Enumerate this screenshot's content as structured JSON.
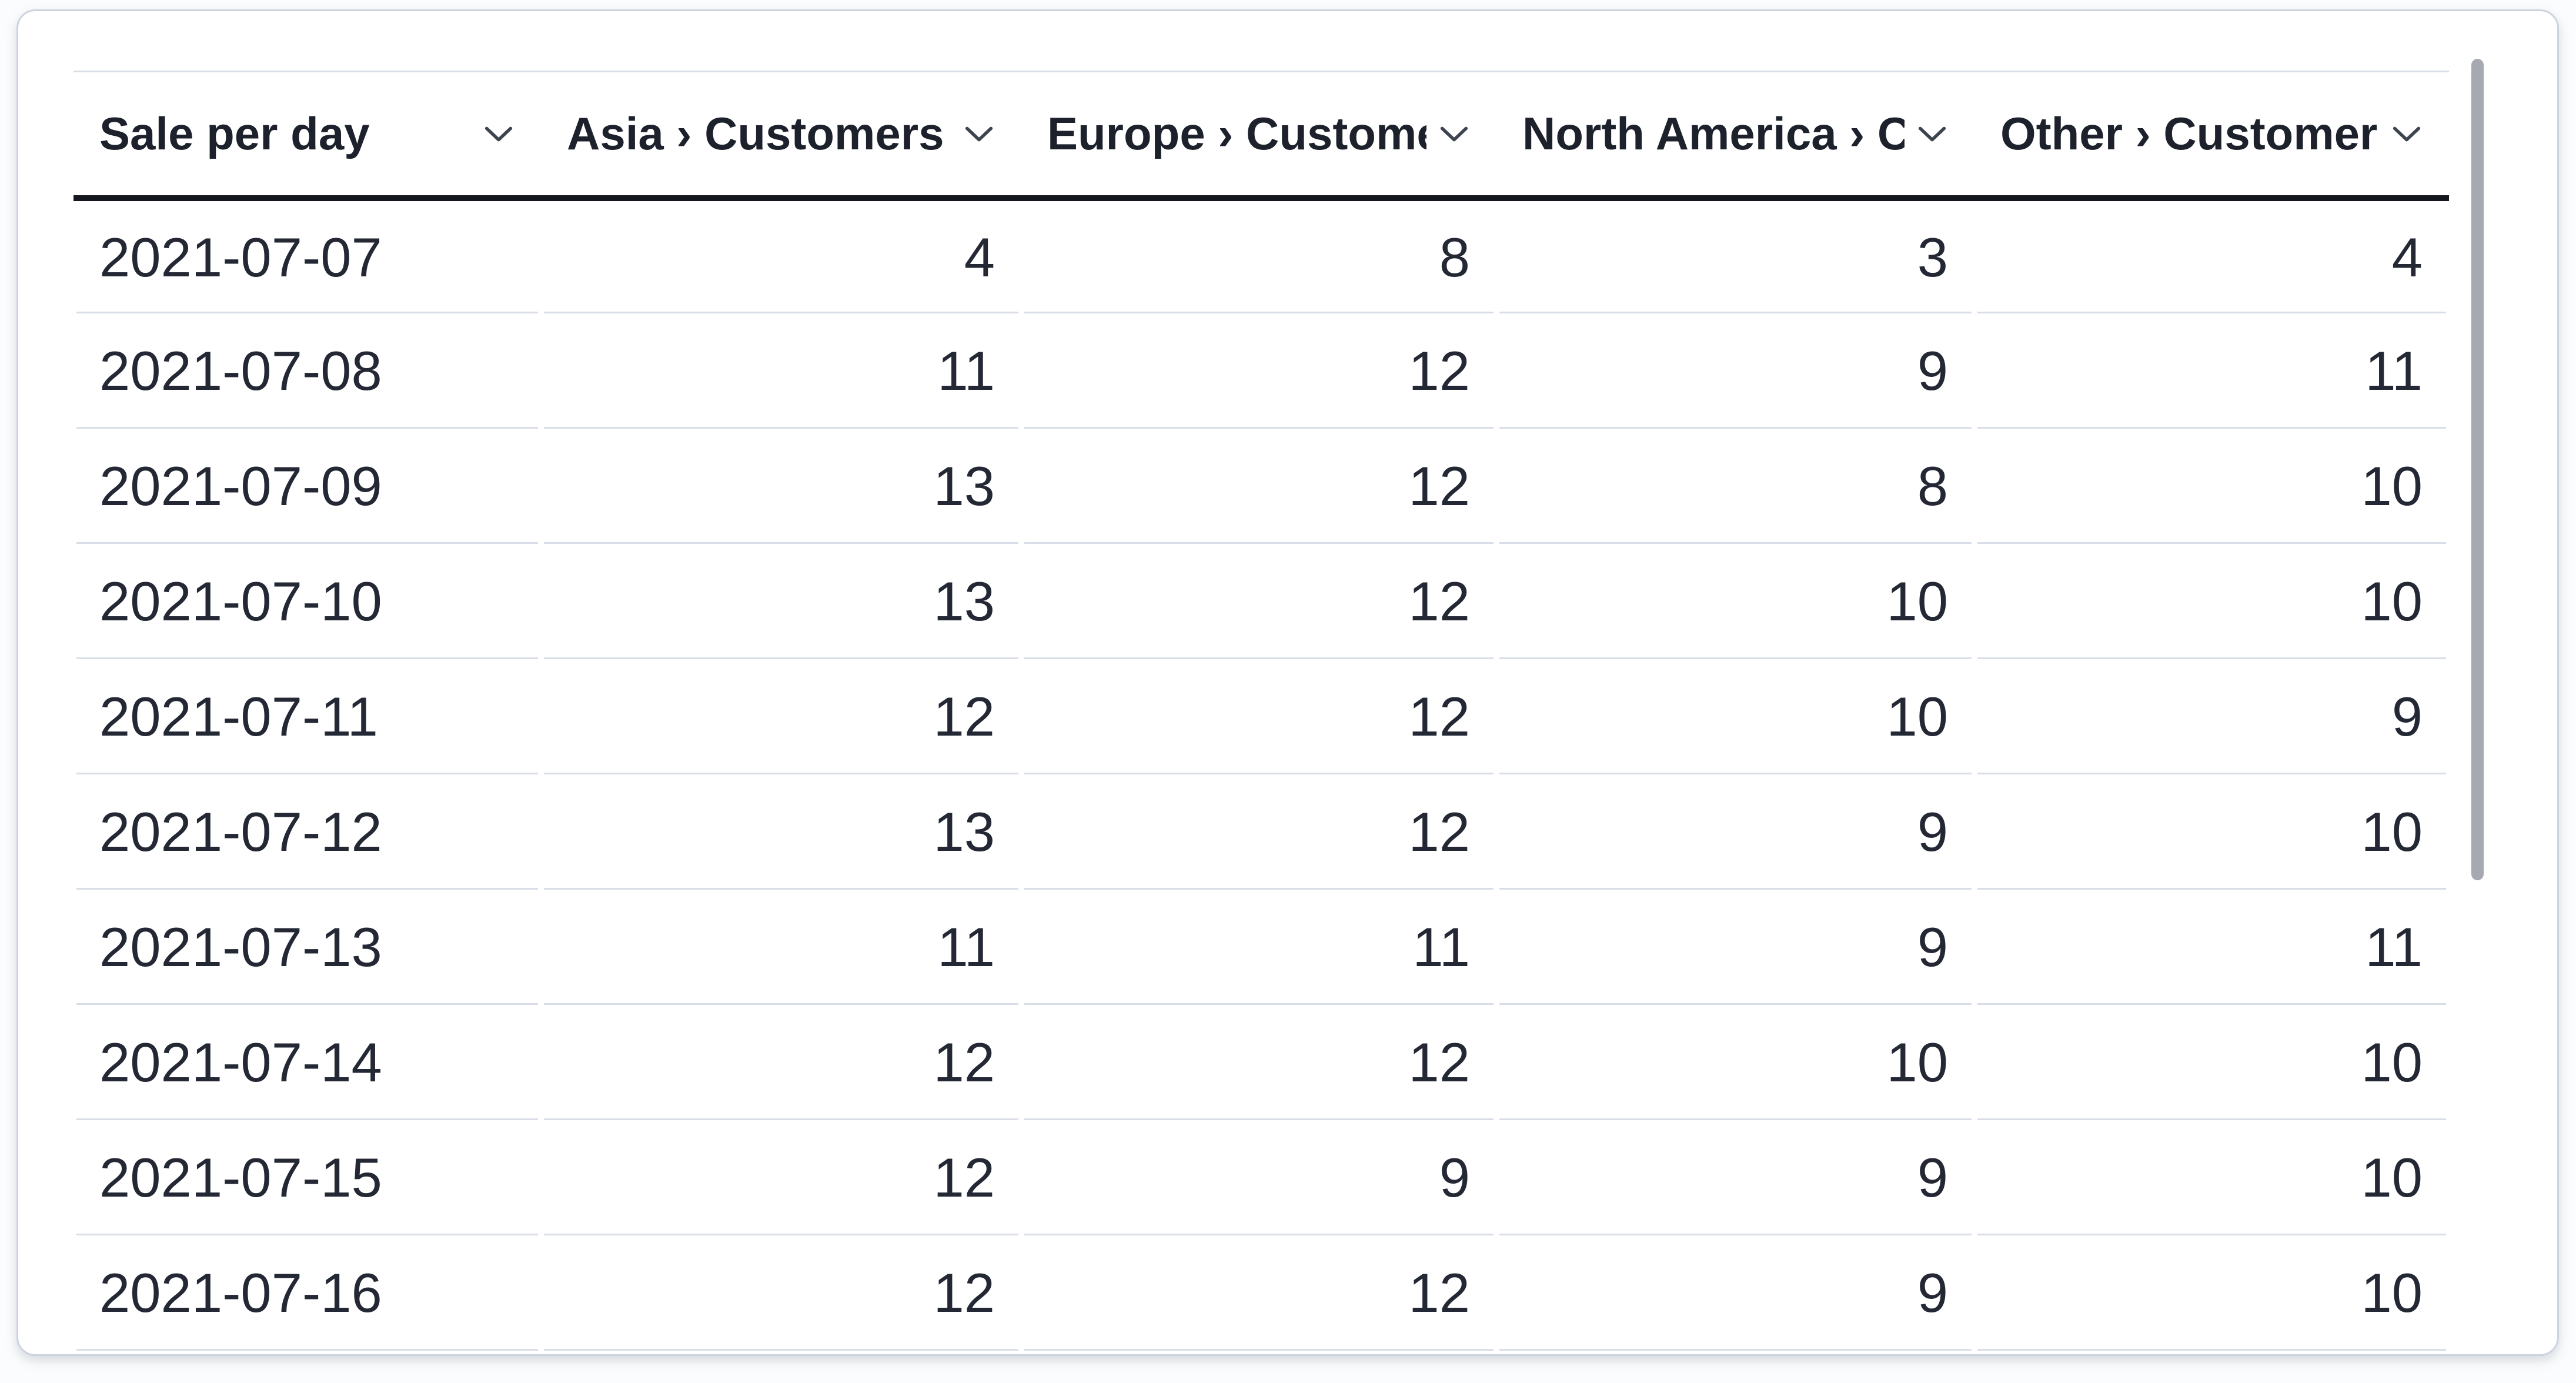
{
  "card": {
    "type": "table-card",
    "background": "#ffffff",
    "border_color": "#ccd4df"
  },
  "table": {
    "columns": [
      {
        "id": "sale-per-day",
        "label": "Sale per day",
        "align": "left"
      },
      {
        "id": "asia-customers",
        "label": "Asia › Customers",
        "align": "right"
      },
      {
        "id": "europe-customers",
        "label": "Europe › Customers",
        "align": "right"
      },
      {
        "id": "north-america-customers",
        "label": "North America › Customers",
        "align": "right"
      },
      {
        "id": "other-customers",
        "label": "Other › Customers",
        "align": "right"
      }
    ],
    "rows": [
      [
        "2021-07-07",
        "4",
        "8",
        "3",
        "4"
      ],
      [
        "2021-07-08",
        "11",
        "12",
        "9",
        "11"
      ],
      [
        "2021-07-09",
        "13",
        "12",
        "8",
        "10"
      ],
      [
        "2021-07-10",
        "13",
        "12",
        "10",
        "10"
      ],
      [
        "2021-07-11",
        "12",
        "12",
        "10",
        "9"
      ],
      [
        "2021-07-12",
        "13",
        "12",
        "9",
        "10"
      ],
      [
        "2021-07-13",
        "11",
        "11",
        "9",
        "11"
      ],
      [
        "2021-07-14",
        "12",
        "12",
        "10",
        "10"
      ],
      [
        "2021-07-15",
        "12",
        "9",
        "9",
        "10"
      ],
      [
        "2021-07-16",
        "12",
        "12",
        "9",
        "10"
      ]
    ]
  },
  "icons": {
    "header_sort_icon": "chevron-down"
  },
  "scrollbar": {
    "orientation": "vertical",
    "thumb_color": "#a6a9af"
  },
  "colors": {
    "header_text": "#1c212b",
    "body_text": "#232834",
    "header_rule": "#14171e",
    "row_separator": "#d8dde7",
    "chevron": "#3e444e"
  }
}
